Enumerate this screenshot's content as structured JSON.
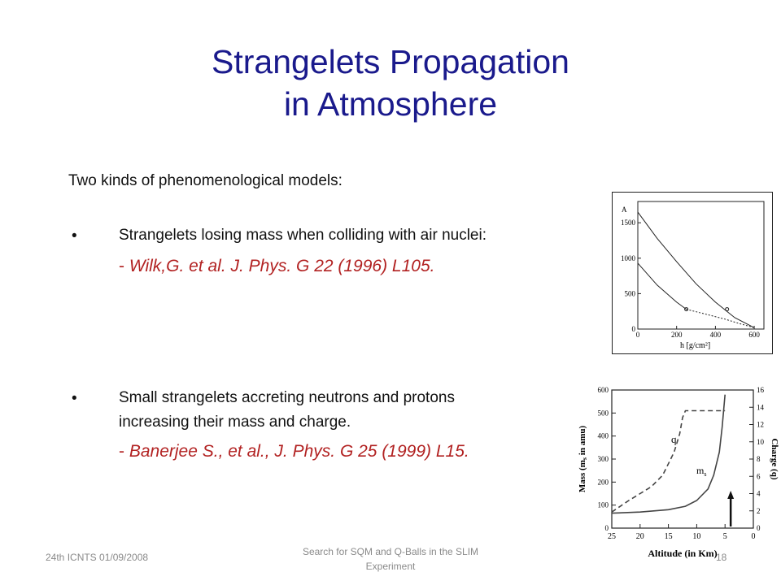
{
  "slide": {
    "title_line1": "Strangelets Propagation",
    "title_line2": "in Atmosphere",
    "intro": "Two kinds of phenomenological  models:",
    "bullet_symbol": "•",
    "bullet1": {
      "text": "Strangelets losing mass when colliding  with air nuclei:",
      "ref_prefix": "- ",
      "ref": "Wilk,G. et al. J. Phys. G 22 (1996) L105."
    },
    "bullet2": {
      "line1": "Small strangelets accreting neutrons and protons",
      "line2": "increasing their mass and charge.",
      "ref_prefix": "- ",
      "ref": "Banerjee S., et al., J. Phys. G 25 (1999) L15."
    }
  },
  "footer": {
    "left": "24th ICNTS 01/09/2008",
    "center": "Search for SQM and Q-Balls in the SLIM Experiment",
    "right": "18"
  },
  "chart_data": [
    {
      "type": "line",
      "ylabel": "A",
      "xlabel": "h  [g/cm²]",
      "x_ticks": [
        "0",
        "200",
        "400",
        "600"
      ],
      "y_ticks": [
        "0",
        "500",
        "1000",
        "1500"
      ],
      "xlim": [
        0,
        650
      ],
      "ylim": [
        0,
        1800
      ],
      "series": [
        {
          "x": [
            0,
            100,
            200,
            300,
            400,
            500,
            600
          ],
          "values": [
            1650,
            1280,
            950,
            640,
            380,
            160,
            20
          ]
        },
        {
          "x": [
            0,
            100,
            200,
            250
          ],
          "values": [
            930,
            620,
            380,
            280
          ]
        },
        {
          "x": [
            250,
            350,
            450,
            520,
            600
          ],
          "values": [
            280,
            210,
            140,
            80,
            20
          ],
          "dashed": true
        }
      ],
      "markers": [
        {
          "x": 250,
          "y": 280
        },
        {
          "x": 460,
          "y": 280
        }
      ]
    },
    {
      "type": "line",
      "xlabel": "Altitude (in Km)",
      "ylabel": "Mass (m_s in amu)",
      "y2label": "Charge (q)",
      "x_ticks": [
        "25",
        "20",
        "15",
        "10",
        "5",
        "0"
      ],
      "y_ticks": [
        "0",
        "100",
        "200",
        "300",
        "400",
        "500",
        "600"
      ],
      "y2_ticks": [
        "0",
        "2",
        "4",
        "6",
        "8",
        "10",
        "12",
        "14",
        "16"
      ],
      "xlim": [
        25,
        0
      ],
      "ylim": [
        0,
        600
      ],
      "series": [
        {
          "name": "q",
          "dashed": true,
          "x": [
            25,
            22,
            20,
            18,
            16,
            15,
            14,
            13,
            12.5,
            12,
            10,
            8,
            6,
            5
          ],
          "values": [
            70,
            120,
            150,
            180,
            230,
            280,
            330,
            410,
            480,
            510,
            510,
            510,
            510,
            510
          ]
        },
        {
          "name": "m_s",
          "x": [
            25,
            20,
            15,
            12,
            10,
            8,
            7,
            6,
            5.5,
            5
          ],
          "values": [
            65,
            70,
            80,
            95,
            120,
            170,
            230,
            330,
            440,
            580
          ]
        }
      ],
      "arrow_x": 4
    }
  ]
}
